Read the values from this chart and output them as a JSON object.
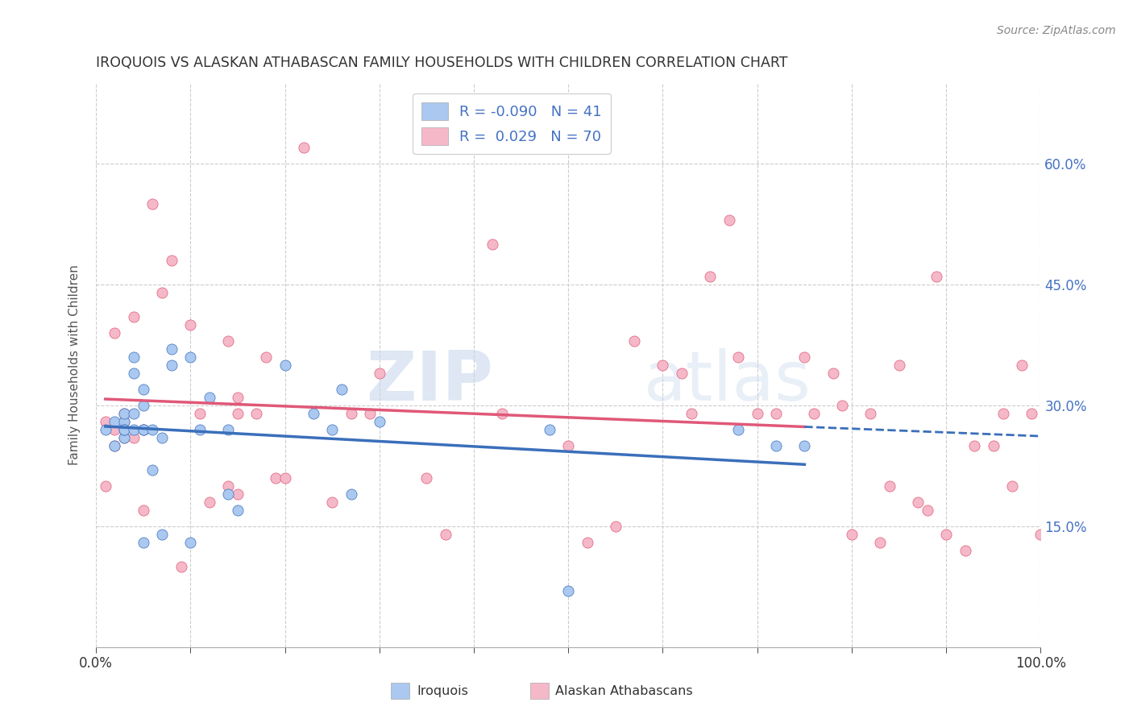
{
  "title": "IROQUOIS VS ALASKAN ATHABASCAN FAMILY HOUSEHOLDS WITH CHILDREN CORRELATION CHART",
  "source": "Source: ZipAtlas.com",
  "ylabel": "Family Households with Children",
  "ytick_vals": [
    0.15,
    0.3,
    0.45,
    0.6
  ],
  "xlim": [
    0.0,
    1.0
  ],
  "ylim": [
    0.0,
    0.7
  ],
  "legend_label1": "Iroquois",
  "legend_label2": "Alaskan Athabascans",
  "R1": -0.09,
  "N1": 41,
  "R2": 0.029,
  "N2": 70,
  "color1": "#aac8f0",
  "color2": "#f5b8c8",
  "color1_line": "#3a6fba",
  "color2_line": "#e05878",
  "iroquois_x": [
    0.01,
    0.02,
    0.02,
    0.03,
    0.03,
    0.03,
    0.03,
    0.03,
    0.04,
    0.04,
    0.04,
    0.04,
    0.05,
    0.05,
    0.05,
    0.05,
    0.05,
    0.06,
    0.06,
    0.07,
    0.07,
    0.08,
    0.08,
    0.1,
    0.1,
    0.11,
    0.12,
    0.14,
    0.14,
    0.15,
    0.2,
    0.23,
    0.25,
    0.26,
    0.27,
    0.3,
    0.48,
    0.5,
    0.68,
    0.72,
    0.75
  ],
  "iroquois_y": [
    0.27,
    0.28,
    0.25,
    0.26,
    0.28,
    0.27,
    0.29,
    0.27,
    0.36,
    0.34,
    0.29,
    0.27,
    0.32,
    0.3,
    0.27,
    0.27,
    0.13,
    0.27,
    0.22,
    0.26,
    0.14,
    0.37,
    0.35,
    0.36,
    0.13,
    0.27,
    0.31,
    0.27,
    0.19,
    0.17,
    0.35,
    0.29,
    0.27,
    0.32,
    0.19,
    0.28,
    0.27,
    0.07,
    0.27,
    0.25,
    0.25
  ],
  "athabascan_x": [
    0.01,
    0.01,
    0.02,
    0.02,
    0.02,
    0.03,
    0.03,
    0.03,
    0.04,
    0.04,
    0.05,
    0.05,
    0.06,
    0.07,
    0.08,
    0.09,
    0.1,
    0.11,
    0.12,
    0.14,
    0.14,
    0.15,
    0.15,
    0.15,
    0.17,
    0.18,
    0.19,
    0.2,
    0.22,
    0.25,
    0.27,
    0.29,
    0.3,
    0.35,
    0.37,
    0.42,
    0.43,
    0.5,
    0.52,
    0.55,
    0.57,
    0.6,
    0.62,
    0.63,
    0.65,
    0.67,
    0.68,
    0.7,
    0.72,
    0.75,
    0.76,
    0.78,
    0.79,
    0.8,
    0.82,
    0.83,
    0.84,
    0.85,
    0.87,
    0.88,
    0.89,
    0.9,
    0.92,
    0.93,
    0.95,
    0.96,
    0.97,
    0.98,
    0.99,
    1.0
  ],
  "athabascan_y": [
    0.28,
    0.2,
    0.27,
    0.25,
    0.39,
    0.28,
    0.26,
    0.29,
    0.26,
    0.41,
    0.27,
    0.17,
    0.55,
    0.44,
    0.48,
    0.1,
    0.4,
    0.29,
    0.18,
    0.2,
    0.38,
    0.29,
    0.31,
    0.19,
    0.29,
    0.36,
    0.21,
    0.21,
    0.62,
    0.18,
    0.29,
    0.29,
    0.34,
    0.21,
    0.14,
    0.5,
    0.29,
    0.25,
    0.13,
    0.15,
    0.38,
    0.35,
    0.34,
    0.29,
    0.46,
    0.53,
    0.36,
    0.29,
    0.29,
    0.36,
    0.29,
    0.34,
    0.3,
    0.14,
    0.29,
    0.13,
    0.2,
    0.35,
    0.18,
    0.17,
    0.46,
    0.14,
    0.12,
    0.25,
    0.25,
    0.29,
    0.2,
    0.35,
    0.29,
    0.14
  ],
  "watermark_zip": "ZIP",
  "watermark_atlas": "atlas",
  "background_color": "#ffffff",
  "grid_color": "#cccccc"
}
